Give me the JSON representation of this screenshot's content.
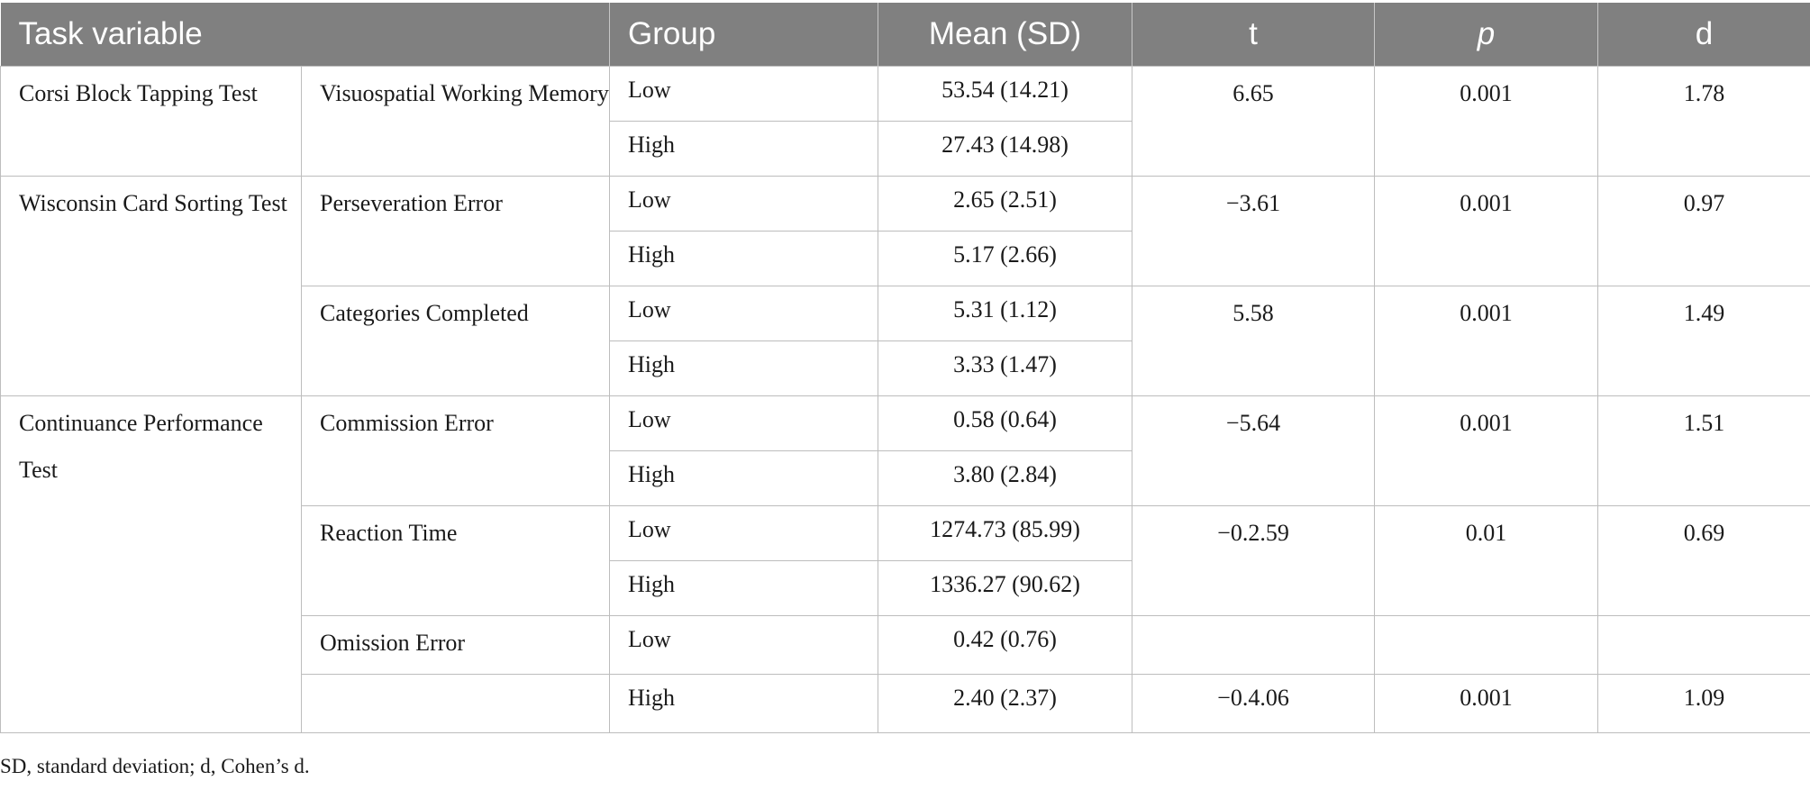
{
  "headers": {
    "task_variable": "Task variable",
    "group": "Group",
    "mean_sd": "Mean (SD)",
    "t": "t",
    "p": "p",
    "d": "d"
  },
  "tasks": [
    {
      "name": "Corsi Block Tapping Test",
      "variables": [
        {
          "name": "Visuospatial Working Memory",
          "low": "53.54 (14.21)",
          "high": "27.43 (14.98)",
          "t": "6.65",
          "p": "0.001",
          "d": "1.78"
        }
      ]
    },
    {
      "name": "Wisconsin Card Sorting Test",
      "variables": [
        {
          "name": "Perseveration Error",
          "low": "2.65 (2.51)",
          "high": "5.17 (2.66)",
          "t": "−3.61",
          "p": "0.001",
          "d": "0.97"
        },
        {
          "name": "Categories Completed",
          "low": "5.31 (1.12)",
          "high": "3.33 (1.47)",
          "t": "5.58",
          "p": "0.001",
          "d": "1.49"
        }
      ]
    },
    {
      "name": "Continuance Performance Test",
      "variables": [
        {
          "name": "Commission Error",
          "low": "0.58 (0.64)",
          "high": "3.80 (2.84)",
          "t": "−5.64",
          "p": "0.001",
          "d": "1.51"
        },
        {
          "name": "Reaction Time",
          "low": "1274.73 (85.99)",
          "high": "1336.27 (90.62)",
          "t": "−0.2.59",
          "p": "0.01",
          "d": "0.69"
        },
        {
          "name": "Omission Error",
          "low": "0.42 (0.76)",
          "high": "2.40 (2.37)",
          "t": "−0.4.06",
          "p": "0.001",
          "d": "1.09"
        }
      ]
    }
  ],
  "group_labels": {
    "low": "Low",
    "high": "High"
  },
  "footnote": "SD, standard deviation; d, Cohen’s d."
}
